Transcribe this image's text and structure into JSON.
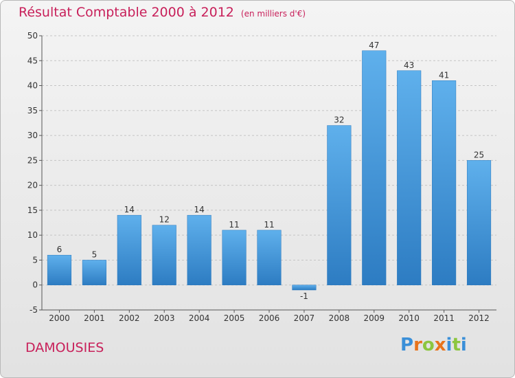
{
  "header": {
    "title": "Résultat Comptable 2000 à 2012",
    "unit": "(en milliers d'€)"
  },
  "footer": {
    "place": "DAMOUSIES",
    "logo_letters": [
      "P",
      "r",
      "o",
      "x",
      "i",
      "t",
      "i"
    ],
    "logo_colors": [
      "#3a8fd8",
      "#e8731b",
      "#8cc63f",
      "#e8731b",
      "#3a8fd8",
      "#8cc63f",
      "#3a8fd8"
    ]
  },
  "chart_data": {
    "type": "bar",
    "categories": [
      "2000",
      "2001",
      "2002",
      "2003",
      "2004",
      "2005",
      "2006",
      "2007",
      "2008",
      "2009",
      "2010",
      "2011",
      "2012"
    ],
    "values": [
      6,
      5,
      14,
      12,
      14,
      11,
      11,
      -1,
      32,
      47,
      43,
      41,
      25
    ],
    "title": "Résultat Comptable 2000 à 2012",
    "subtitle": "(en milliers d'€)",
    "xlabel": "",
    "ylabel": "",
    "ylim": [
      -5,
      50
    ],
    "yticks": [
      -5,
      0,
      5,
      10,
      15,
      20,
      25,
      30,
      35,
      40,
      45,
      50
    ],
    "grid": "horizontal-dashed",
    "bar_color": "#3d95dc",
    "bar_color_light": "#5fb0ec"
  }
}
